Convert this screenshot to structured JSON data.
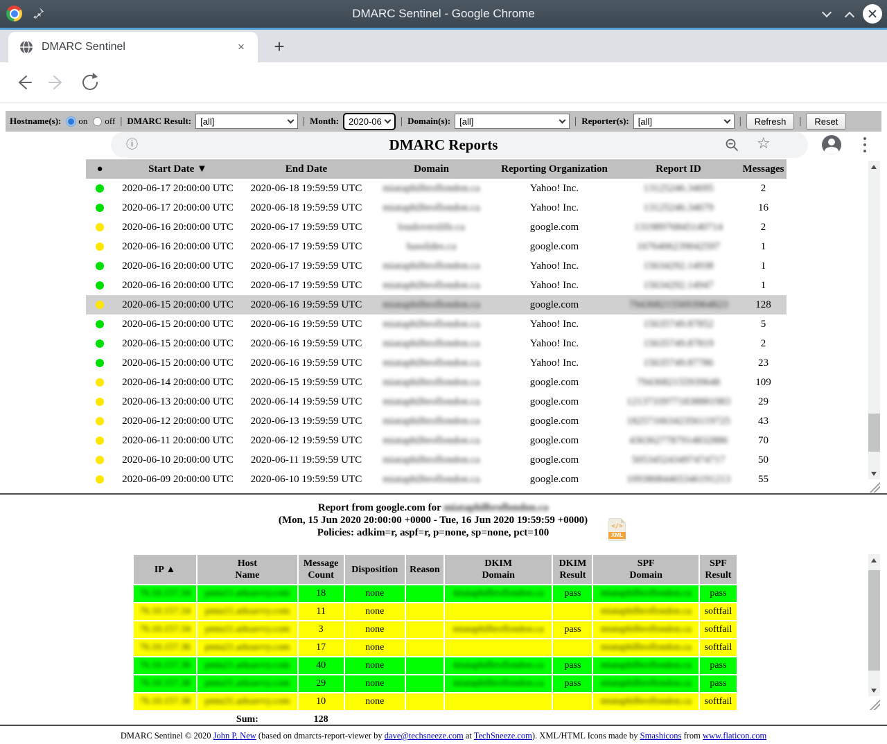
{
  "browser": {
    "window_title": "DMARC Sentinel - Google Chrome",
    "tab_title": "DMARC Sentinel",
    "tab_close": "×",
    "new_tab_button": "+",
    "info_icon_glyph": "ⓘ",
    "star_icon_glyph": "☆"
  },
  "filters": {
    "hostname": {
      "label": "Hostname(s):",
      "on_label": "on",
      "off_label": "off",
      "selected": "on"
    },
    "dmarc_result": {
      "label": "DMARC Result:",
      "value": "[all]"
    },
    "month": {
      "label": "Month:",
      "value": "2020-06"
    },
    "domain": {
      "label": "Domain(s):",
      "value": "[all]"
    },
    "reporter": {
      "label": "Reporter(s):",
      "value": "[all]"
    },
    "refresh_label": "Refresh",
    "reset_label": "Reset",
    "separator": "|"
  },
  "reports": {
    "title": "DMARC Reports",
    "columns": [
      "●",
      "Start Date ▼",
      "End Date",
      "Domain",
      "Reporting Organization",
      "Report ID",
      "Messages"
    ],
    "rows": [
      {
        "status": "green",
        "start": "2020-06-17 20:00:00 UTC",
        "end": "2020-06-18 19:59:59 UTC",
        "domain": "miataphilbroflondon.ca",
        "org": "Yahoo! Inc.",
        "report_id": "13125246.34695",
        "messages": "2",
        "selected": false
      },
      {
        "status": "green",
        "start": "2020-06-17 20:00:00 UTC",
        "end": "2020-06-18 19:59:59 UTC",
        "domain": "miataphilbroflondon.ca",
        "org": "Yahoo! Inc.",
        "report_id": "13125246.34679",
        "messages": "16",
        "selected": false
      },
      {
        "status": "yellow",
        "start": "2020-06-16 20:00:00 UTC",
        "end": "2020-06-17 19:59:59 UTC",
        "domain": "loudoverslife.ca",
        "org": "google.com",
        "report_id": "13198976845140714",
        "messages": "2",
        "selected": false
      },
      {
        "status": "yellow",
        "start": "2020-06-16 20:00:00 UTC",
        "end": "2020-06-17 19:59:59 UTC",
        "domain": "basslides.ca",
        "org": "google.com",
        "report_id": "1676406239042597",
        "messages": "1",
        "selected": false
      },
      {
        "status": "green",
        "start": "2020-06-16 20:00:00 UTC",
        "end": "2020-06-17 19:59:59 UTC",
        "domain": "miataphilbroflondon.ca",
        "org": "Yahoo! Inc.",
        "report_id": "15634292.14938",
        "messages": "1",
        "selected": false
      },
      {
        "status": "green",
        "start": "2020-06-16 20:00:00 UTC",
        "end": "2020-06-17 19:59:59 UTC",
        "domain": "miataphilbroflondon.ca",
        "org": "Yahoo! Inc.",
        "report_id": "15634292.14947",
        "messages": "1",
        "selected": false
      },
      {
        "status": "yellow",
        "start": "2020-06-15 20:00:00 UTC",
        "end": "2020-06-16 19:59:59 UTC",
        "domain": "miataphilbroflondon.ca",
        "org": "google.com",
        "report_id": "7943682155693964823",
        "messages": "128",
        "selected": true
      },
      {
        "status": "green",
        "start": "2020-06-15 20:00:00 UTC",
        "end": "2020-06-16 19:59:59 UTC",
        "domain": "miataphilbroflondon.ca",
        "org": "Yahoo! Inc.",
        "report_id": "15635749.87852",
        "messages": "5",
        "selected": false
      },
      {
        "status": "green",
        "start": "2020-06-15 20:00:00 UTC",
        "end": "2020-06-16 19:59:59 UTC",
        "domain": "miataphilbroflondon.ca",
        "org": "Yahoo! Inc.",
        "report_id": "15635749.87819",
        "messages": "2",
        "selected": false
      },
      {
        "status": "green",
        "start": "2020-06-15 20:00:00 UTC",
        "end": "2020-06-16 19:59:59 UTC",
        "domain": "miataphilbroflondon.ca",
        "org": "Yahoo! Inc.",
        "report_id": "15635749.87786",
        "messages": "23",
        "selected": false
      },
      {
        "status": "yellow",
        "start": "2020-06-14 20:00:00 UTC",
        "end": "2020-06-15 19:59:59 UTC",
        "domain": "miataphilbroflondon.ca",
        "org": "google.com",
        "report_id": "7943682155939648",
        "messages": "109",
        "selected": false
      },
      {
        "status": "yellow",
        "start": "2020-06-13 20:00:00 UTC",
        "end": "2020-06-14 19:59:59 UTC",
        "domain": "miataphilbroflondon.ca",
        "org": "google.com",
        "report_id": "12137339771838881983",
        "messages": "29",
        "selected": false
      },
      {
        "status": "yellow",
        "start": "2020-06-12 20:00:00 UTC",
        "end": "2020-06-13 19:59:59 UTC",
        "domain": "miataphilbroflondon.ca",
        "org": "google.com",
        "report_id": "18257166342356119725",
        "messages": "43",
        "selected": false
      },
      {
        "status": "yellow",
        "start": "2020-06-11 20:00:00 UTC",
        "end": "2020-06-12 19:59:59 UTC",
        "domain": "miataphilbroflondon.ca",
        "org": "google.com",
        "report_id": "4363627787914832886",
        "messages": "70",
        "selected": false
      },
      {
        "status": "yellow",
        "start": "2020-06-10 20:00:00 UTC",
        "end": "2020-06-11 19:59:59 UTC",
        "domain": "miataphilbroflondon.ca",
        "org": "google.com",
        "report_id": "505345243497474717",
        "messages": "50",
        "selected": false
      },
      {
        "status": "yellow",
        "start": "2020-06-09 20:00:00 UTC",
        "end": "2020-06-10 19:59:59 UTC",
        "domain": "miataphilbroflondon.ca",
        "org": "google.com",
        "report_id": "10938084465346191213",
        "messages": "55",
        "selected": false
      }
    ]
  },
  "detail": {
    "title_prefix": "Report from google.com for ",
    "title_domain": "miataphilbroflondon.ca",
    "title_line2": "(Mon, 15 Jun 2020 20:00:00 +0000 - Tue, 16 Jun 2020 19:59:59 +0000)",
    "title_line3": "Policies: adkim=r, aspf=r, p=none, sp=none, pct=100",
    "xml_icon": {
      "code": "</>",
      "label": "XML"
    },
    "columns": [
      "IP ▲",
      "Host\nName",
      "Message\nCount",
      "Disposition",
      "Reason",
      "DKIM\nDomain",
      "DKIM\nResult",
      "SPF\nDomain",
      "SPF\nResult"
    ],
    "rows": [
      {
        "color": "green",
        "ip": "76.10.157.34",
        "host": "pmta11.arksavvy.com",
        "count": "18",
        "disposition": "none",
        "reason": "",
        "dkim_domain": "miataphilbroflondon.ca",
        "dkim_result": "pass",
        "spf_domain": "miataphilbroflondon.ca",
        "spf_result": "pass"
      },
      {
        "color": "yellow",
        "ip": "76.10.157.34",
        "host": "pmta11.arksavvy.com",
        "count": "11",
        "disposition": "none",
        "reason": "",
        "dkim_domain": "",
        "dkim_result": "",
        "spf_domain": "miataphilbroflondon.ca",
        "spf_result": "softfail"
      },
      {
        "color": "yellow",
        "ip": "76.10.157.34",
        "host": "pmta11.arksavvy.com",
        "count": "3",
        "disposition": "none",
        "reason": "",
        "dkim_domain": "miataphilbroflondon.ca",
        "dkim_result": "pass",
        "spf_domain": "miataphilbroflondon.ca",
        "spf_result": "softfail"
      },
      {
        "color": "yellow",
        "ip": "76.10.157.36",
        "host": "pmta21.arksavvy.com",
        "count": "17",
        "disposition": "none",
        "reason": "",
        "dkim_domain": "",
        "dkim_result": "",
        "spf_domain": "miataphilbroflondon.ca",
        "spf_result": "softfail"
      },
      {
        "color": "green",
        "ip": "76.10.157.36",
        "host": "pmta21.arksavvy.com",
        "count": "40",
        "disposition": "none",
        "reason": "",
        "dkim_domain": "miataphilbroflondon.ca",
        "dkim_result": "pass",
        "spf_domain": "miataphilbroflondon.ca",
        "spf_result": "pass"
      },
      {
        "color": "green",
        "ip": "76.10.157.38",
        "host": "pmta31.arksavvy.com",
        "count": "29",
        "disposition": "none",
        "reason": "",
        "dkim_domain": "miataphilbroflondon.ca",
        "dkim_result": "pass",
        "spf_domain": "miataphilbroflondon.ca",
        "spf_result": "pass"
      },
      {
        "color": "yellow",
        "ip": "76.10.157.38",
        "host": "pmta31.arksavvy.com",
        "count": "10",
        "disposition": "none",
        "reason": "",
        "dkim_domain": "",
        "dkim_result": "",
        "spf_domain": "miataphilbroflondon.ca",
        "spf_result": "softfail"
      }
    ],
    "sum_label": "Sum:",
    "sum_value": "128"
  },
  "footer": {
    "segments": [
      {
        "text": "DMARC Sentinel © 2020 "
      },
      {
        "link": "John P. New"
      },
      {
        "text": " (based on dmarcts-report-viewer by "
      },
      {
        "link": "dave@techsneeze.com"
      },
      {
        "text": " at "
      },
      {
        "link": "TechSneeze.com"
      },
      {
        "text": "). XML/HTML Icons made by "
      },
      {
        "link": "Smashicons"
      },
      {
        "text": " from "
      },
      {
        "link": "www.flaticon.com"
      }
    ]
  },
  "colors": {
    "status_green": "#00e000",
    "status_yellow": "#ffe600",
    "row_green": "#00ff00",
    "row_yellow": "#ffff00",
    "selected_row": "#d0d0d0",
    "table_header": "#c0c0c0",
    "titlebar": "#3e4a54",
    "accent_blue": "#55a0d5",
    "link_blue": "#0000cc"
  }
}
